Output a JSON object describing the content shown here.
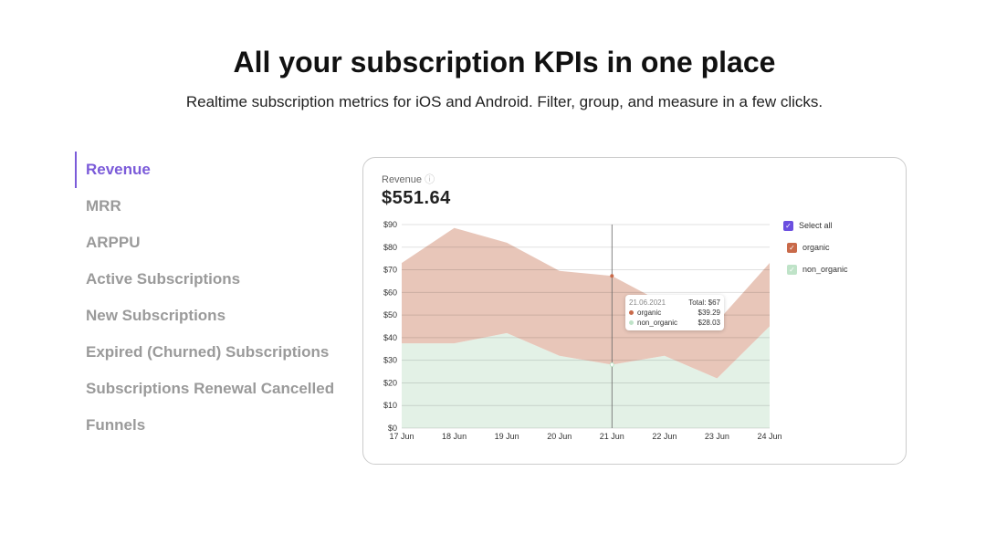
{
  "header": {
    "title": "All your subscription KPIs in one place",
    "subtitle": "Realtime subscription metrics for iOS and Android. Filter, group, and measure in a few clicks."
  },
  "nav": {
    "items": [
      {
        "label": "Revenue",
        "active": true
      },
      {
        "label": "MRR"
      },
      {
        "label": "ARPPU"
      },
      {
        "label": "Active Subscriptions"
      },
      {
        "label": "New Subscriptions"
      },
      {
        "label": "Expired (Churned) Subscriptions"
      },
      {
        "label": "Subscriptions Renewal Cancelled"
      },
      {
        "label": "Funnels"
      }
    ]
  },
  "card": {
    "title": "Revenue",
    "value": "$551.64"
  },
  "legend": {
    "select_all": "Select all",
    "items": [
      "organic",
      "non_organic"
    ]
  },
  "tooltip": {
    "date": "21.06.2021",
    "total": "Total: $67",
    "rows": [
      {
        "name": "organic",
        "value": "$39.29"
      },
      {
        "name": "non_organic",
        "value": "$28.03"
      }
    ]
  },
  "chart_data": {
    "type": "area",
    "stacked": true,
    "categories": [
      "17 Jun",
      "18 Jun",
      "19 Jun",
      "20 Jun",
      "21 Jun",
      "22 Jun",
      "23 Jun",
      "24 Jun"
    ],
    "y_ticks": [
      "$0",
      "$10",
      "$20",
      "$30",
      "$40",
      "$50",
      "$60",
      "$70",
      "$80",
      "$90"
    ],
    "ylim": [
      0,
      90
    ],
    "grid": true,
    "legend": "right",
    "series": [
      {
        "name": "non_organic",
        "color": "#e3f1e6",
        "values": [
          37.5,
          37.5,
          42,
          32,
          28.03,
          32,
          22,
          45
        ]
      },
      {
        "name": "organic",
        "color": "#e8c6b9",
        "values": [
          35.5,
          51,
          40,
          37.5,
          39.29,
          23,
          25,
          28
        ]
      }
    ]
  },
  "colors": {
    "accent": "#7b5bd9",
    "organic": "#c96a4a",
    "non_organic": "#bfe3c8"
  }
}
